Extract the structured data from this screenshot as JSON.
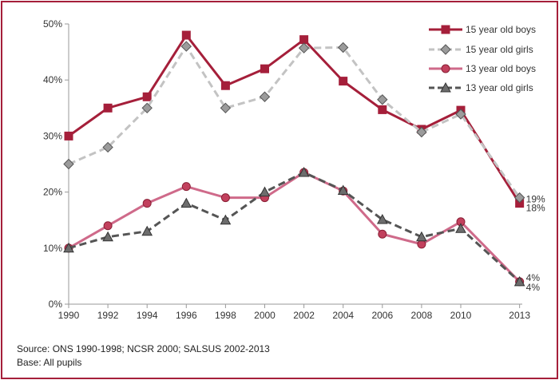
{
  "chart_data": {
    "type": "line",
    "title": "",
    "xlabel": "",
    "ylabel": "",
    "categories": [
      "1990",
      "1992",
      "1994",
      "1996",
      "1998",
      "2000",
      "2002",
      "2004",
      "2006",
      "2008",
      "2010",
      "2013"
    ],
    "ylim": [
      0,
      50
    ],
    "y_ticks": [
      "0%",
      "10%",
      "20%",
      "30%",
      "40%",
      "50%"
    ],
    "grid": false,
    "legend_position": "top-right",
    "series": [
      {
        "name": "15 year old boys",
        "color": "#a51f3a",
        "marker": "square",
        "dashed": false,
        "values": [
          30,
          35,
          37,
          48,
          39,
          42,
          47.2,
          39.8,
          34.7,
          31.2,
          34.6,
          18
        ]
      },
      {
        "name": "15 year old girls",
        "color": "#c3c3c3",
        "marker_color": "#9b9b9b",
        "marker": "diamond",
        "dashed": true,
        "values": [
          25,
          28,
          35,
          46,
          35,
          37,
          45.7,
          45.8,
          36.5,
          30.7,
          33.9,
          19
        ]
      },
      {
        "name": "13 year old boys",
        "color": "#cf6a8a",
        "marker_color": "#c2405d",
        "marker": "circle",
        "dashed": false,
        "values": [
          10,
          14,
          18,
          21,
          19,
          19,
          23.5,
          20.2,
          12.5,
          10.7,
          14.7,
          4
        ]
      },
      {
        "name": "13 year old girls",
        "color": "#555555",
        "marker_color": "#6d6d6d",
        "marker": "triangle",
        "dashed": true,
        "values": [
          10,
          12,
          13,
          18,
          15,
          20,
          23.5,
          20.3,
          15.1,
          12,
          13.5,
          4
        ]
      }
    ],
    "end_labels": [
      "19%",
      "18%",
      "4%",
      "4%"
    ]
  },
  "notes": {
    "source": "Source: ONS 1990-1998; NCSR 2000; SALSUS 2002-2013",
    "base": "Base: All pupils"
  }
}
